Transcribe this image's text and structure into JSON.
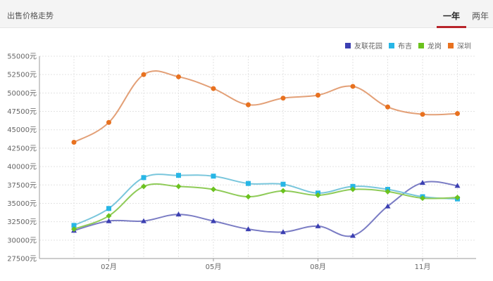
{
  "header": {
    "title": "出售价格走势",
    "tabs": [
      {
        "label": "一年",
        "active": true
      },
      {
        "label": "两年",
        "active": false
      }
    ]
  },
  "colors": {
    "tab_underline": "#b8242a",
    "grid": "#e3e3e3",
    "axis": "#999999"
  },
  "chart_data": {
    "type": "line",
    "x": [
      "2020-01",
      "2020-02",
      "2020-03",
      "2020-04",
      "2020-05",
      "2020-06",
      "2020-07",
      "2020-08",
      "2020-09",
      "2020-10",
      "2020-11",
      "2020-12"
    ],
    "x_tick_labels": [
      "02月",
      "05月",
      "08月",
      "11月"
    ],
    "x_tick_indices": [
      1,
      4,
      7,
      10
    ],
    "ylim": [
      27500,
      55000
    ],
    "y_ticks": [
      27500,
      30000,
      32500,
      35000,
      37500,
      40000,
      42500,
      45000,
      47500,
      50000,
      52500,
      55000
    ],
    "y_unit": "元",
    "grid": true,
    "legend_position": "top-right",
    "series": [
      {
        "name": "友联花园",
        "color": "#3b3fb2",
        "line_color": "#7a7cc4",
        "marker": "triangle",
        "values": [
          31300,
          32600,
          32600,
          33500,
          32600,
          31500,
          31100,
          31900,
          30600,
          34600,
          37800,
          37400
        ]
      },
      {
        "name": "布吉",
        "color": "#27b6e6",
        "line_color": "#79c6dc",
        "marker": "square",
        "values": [
          32000,
          34300,
          38500,
          38800,
          38700,
          37700,
          37600,
          36400,
          37300,
          36900,
          35900,
          35600
        ]
      },
      {
        "name": "龙岗",
        "color": "#6bc21e",
        "line_color": "#8fcb58",
        "marker": "diamond",
        "values": [
          31500,
          33300,
          37300,
          37300,
          36900,
          35900,
          36700,
          36100,
          36900,
          36600,
          35700,
          35800
        ]
      },
      {
        "name": "深圳",
        "color": "#e8711f",
        "line_color": "#e3a077",
        "marker": "circle",
        "values": [
          43300,
          46000,
          52500,
          52200,
          50600,
          48400,
          49300,
          49700,
          50900,
          48100,
          47100,
          47200
        ]
      }
    ]
  }
}
